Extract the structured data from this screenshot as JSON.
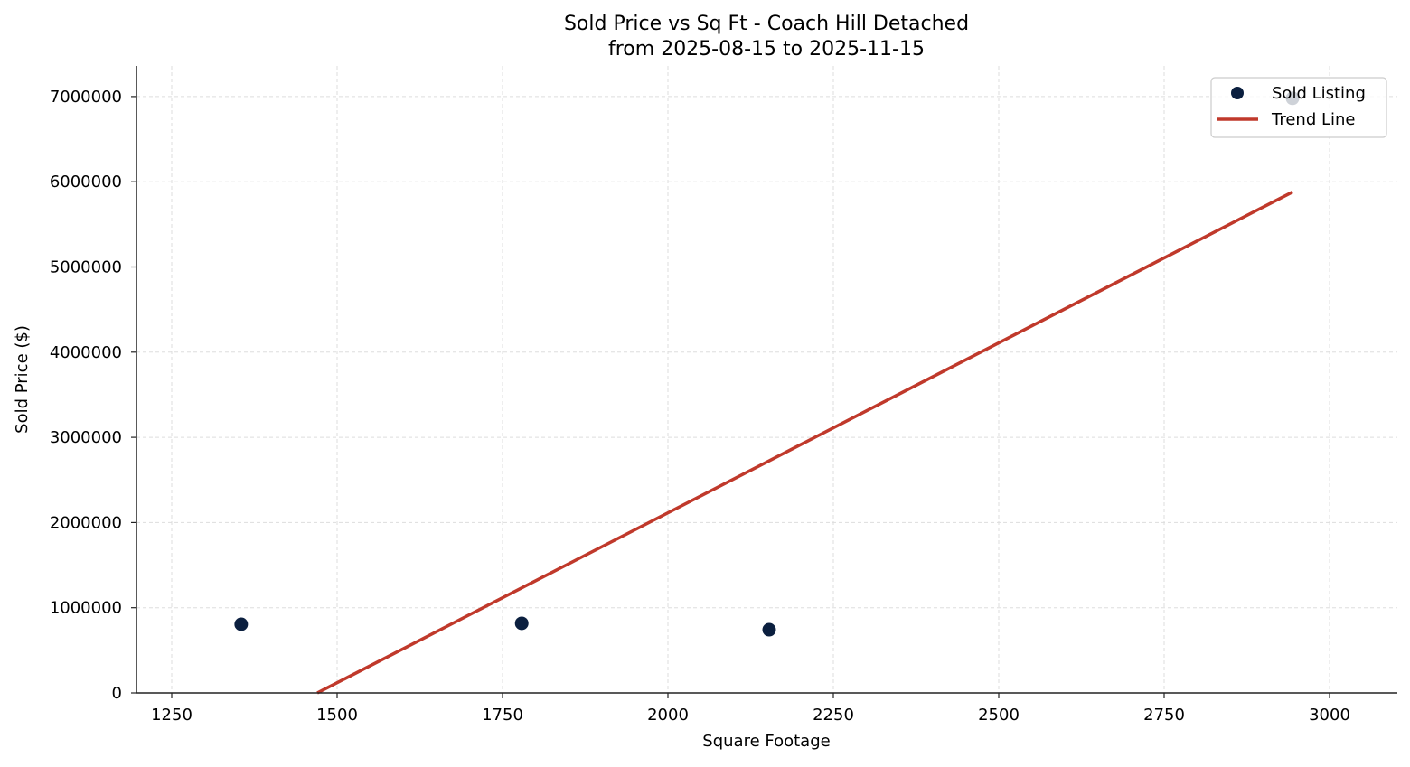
{
  "chart_data": {
    "type": "scatter",
    "title": "Sold Price vs Sq Ft - Coach Hill Detached",
    "subtitle": "from 2025-08-15 to 2025-11-15",
    "xlabel": "Square Footage",
    "ylabel": "Sold Price ($)",
    "xlim": [
      1200,
      3110
    ],
    "ylim": [
      0,
      7350000
    ],
    "x_ticks": [
      1250,
      1500,
      1750,
      2000,
      2250,
      2500,
      2750,
      3000
    ],
    "y_ticks": [
      0,
      1000000,
      2000000,
      3000000,
      4000000,
      5000000,
      6000000,
      7000000
    ],
    "grid": true,
    "legend_position": "upper right",
    "series": [
      {
        "name": "Sold Listing",
        "kind": "scatter",
        "color": "#0b1f3f",
        "points": [
          {
            "x": 1355,
            "y": 806000
          },
          {
            "x": 1779,
            "y": 817000
          },
          {
            "x": 2153,
            "y": 742000
          },
          {
            "x": 2944,
            "y": 6980000
          }
        ]
      },
      {
        "name": "Trend Line",
        "kind": "line",
        "color": "#c0392b",
        "points": [
          {
            "x": 1470,
            "y": 0
          },
          {
            "x": 2944,
            "y": 5880000
          }
        ]
      }
    ]
  }
}
